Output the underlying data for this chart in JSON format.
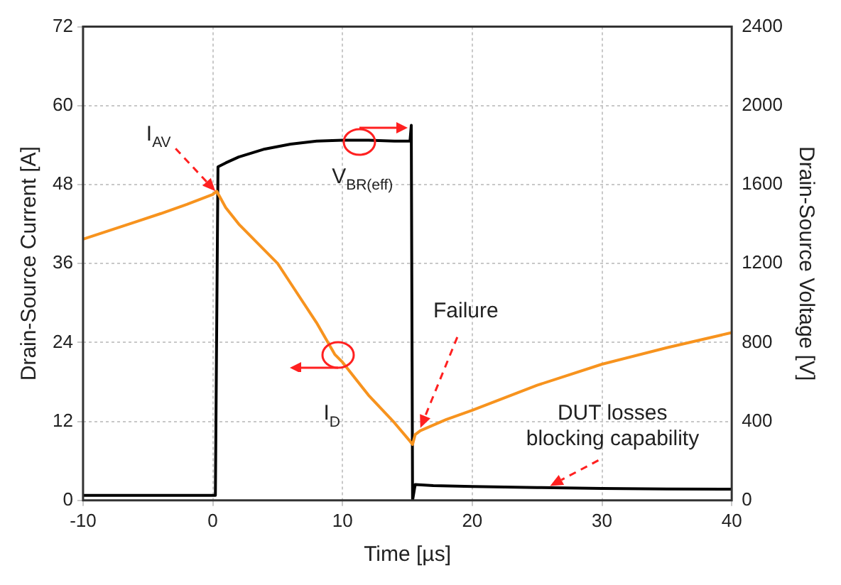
{
  "chart_data": {
    "type": "line",
    "xlabel": "Time [µs]",
    "ylabel": "Drain-Source Current [A]",
    "y2label": "Drain-Source Voltage [V]",
    "series": [
      {
        "name": "I$_{D}$",
        "color": "#f7931e",
        "x": [
          -10,
          -8,
          -6,
          -4,
          -2,
          0,
          0.3,
          1,
          2,
          3,
          4,
          5,
          6,
          8,
          9.4,
          10,
          12,
          14,
          15.2,
          15.4,
          15.6,
          16,
          18,
          20,
          25,
          30,
          35,
          40
        ],
        "values": [
          39.7,
          41,
          42.3,
          43.6,
          45,
          46.5,
          47,
          44.5,
          42,
          40,
          38,
          36,
          33,
          27,
          22.2,
          21,
          16,
          11.8,
          9,
          8.5,
          10,
          10.6,
          12.3,
          13.7,
          17.5,
          20.7,
          23.2,
          25.5
        ]
      },
      {
        "name": "V$_{BR(eff)}$",
        "color": "#000000",
        "axis": "y2",
        "x": [
          -10,
          -5,
          0,
          0.2,
          0.4,
          1,
          2,
          4,
          6,
          8,
          10,
          12,
          14,
          15.2,
          15.3,
          15.4,
          15.6,
          17,
          20,
          25,
          30,
          35,
          40
        ],
        "values": [
          25,
          25,
          25,
          25,
          1690,
          1710,
          1740,
          1780,
          1805,
          1820,
          1825,
          1825,
          1820,
          1820,
          1900,
          0,
          80,
          75,
          70,
          65,
          60,
          58,
          57
        ]
      }
    ],
    "xlim": [
      -10,
      40
    ],
    "xticks": [
      -10,
      0,
      10,
      20,
      30,
      40
    ],
    "ylim": [
      0,
      72
    ],
    "yticks": [
      0,
      12,
      24,
      36,
      48,
      60,
      72
    ],
    "y2lim": [
      0,
      2400
    ],
    "y2ticks": [
      0,
      400,
      800,
      1200,
      1600,
      2000,
      2400
    ],
    "grid": true,
    "legend": false,
    "marker": "none",
    "line_style": "solid",
    "annotations": [
      {
        "text": "I$_{AV}$",
        "x": 0.2,
        "y": 47
      },
      {
        "text": "Failure",
        "x": 16,
        "y": 11
      },
      {
        "text": "DUT losses blocking capability",
        "x": 26,
        "y": 2.2
      }
    ]
  }
}
